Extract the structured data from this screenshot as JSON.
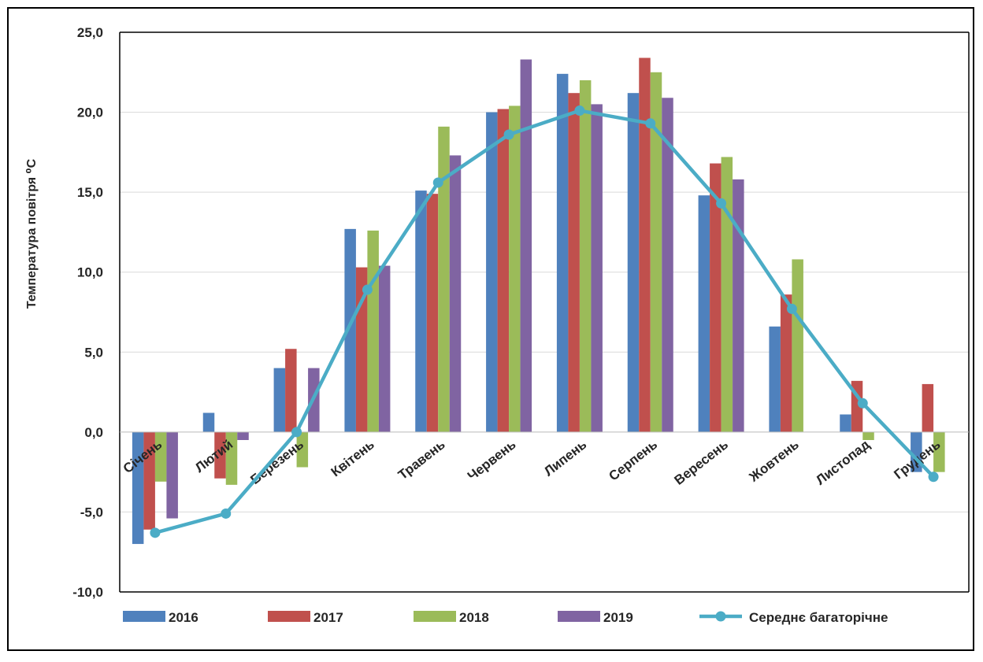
{
  "chart_data": {
    "type": "bar",
    "title": "",
    "xlabel": "",
    "ylabel": "Температура повітря ⁰С",
    "ylim": [
      -10,
      25
    ],
    "yticks": [
      25,
      20,
      15,
      10,
      5,
      0,
      -5,
      -10
    ],
    "ytick_labels": [
      "25,0",
      "20,0",
      "15,0",
      "10,0",
      "5,0",
      "0,0",
      "-5,0",
      "-10,0"
    ],
    "grid": true,
    "legend_position": "bottom",
    "categories": [
      "Січень",
      "Лютий",
      "Березень",
      "Квітень",
      "Травень",
      "Червень",
      "Липень",
      "Серпень",
      "Вересень",
      "Жовтень",
      "Листопад",
      "Грудень"
    ],
    "series": [
      {
        "name": "2016",
        "type": "bar",
        "color": "#4f81bd",
        "values": [
          -7.0,
          1.2,
          4.0,
          12.7,
          15.1,
          20.0,
          22.4,
          21.2,
          14.8,
          6.6,
          1.1,
          -2.5
        ]
      },
      {
        "name": "2017",
        "type": "bar",
        "color": "#c0504d",
        "values": [
          -6.1,
          -2.9,
          5.2,
          10.3,
          14.9,
          20.2,
          21.2,
          23.4,
          16.8,
          8.6,
          3.2,
          3.0
        ]
      },
      {
        "name": "2018",
        "type": "bar",
        "color": "#9bbb59",
        "values": [
          -3.1,
          -3.3,
          -2.2,
          12.6,
          19.1,
          20.4,
          22.0,
          22.5,
          17.2,
          10.8,
          -0.5,
          -2.5
        ]
      },
      {
        "name": "2019",
        "type": "bar",
        "color": "#8064a2",
        "values": [
          -5.4,
          -0.5,
          4.0,
          10.4,
          17.3,
          23.3,
          20.5,
          20.9,
          15.8,
          0.0,
          0.0,
          0.0
        ]
      },
      {
        "name": "Середнє багаторічне",
        "type": "line",
        "color": "#4bacc6",
        "values": [
          -6.3,
          -5.1,
          0.0,
          8.9,
          15.6,
          18.6,
          20.1,
          19.3,
          14.3,
          7.7,
          1.8,
          -2.8
        ]
      }
    ]
  }
}
